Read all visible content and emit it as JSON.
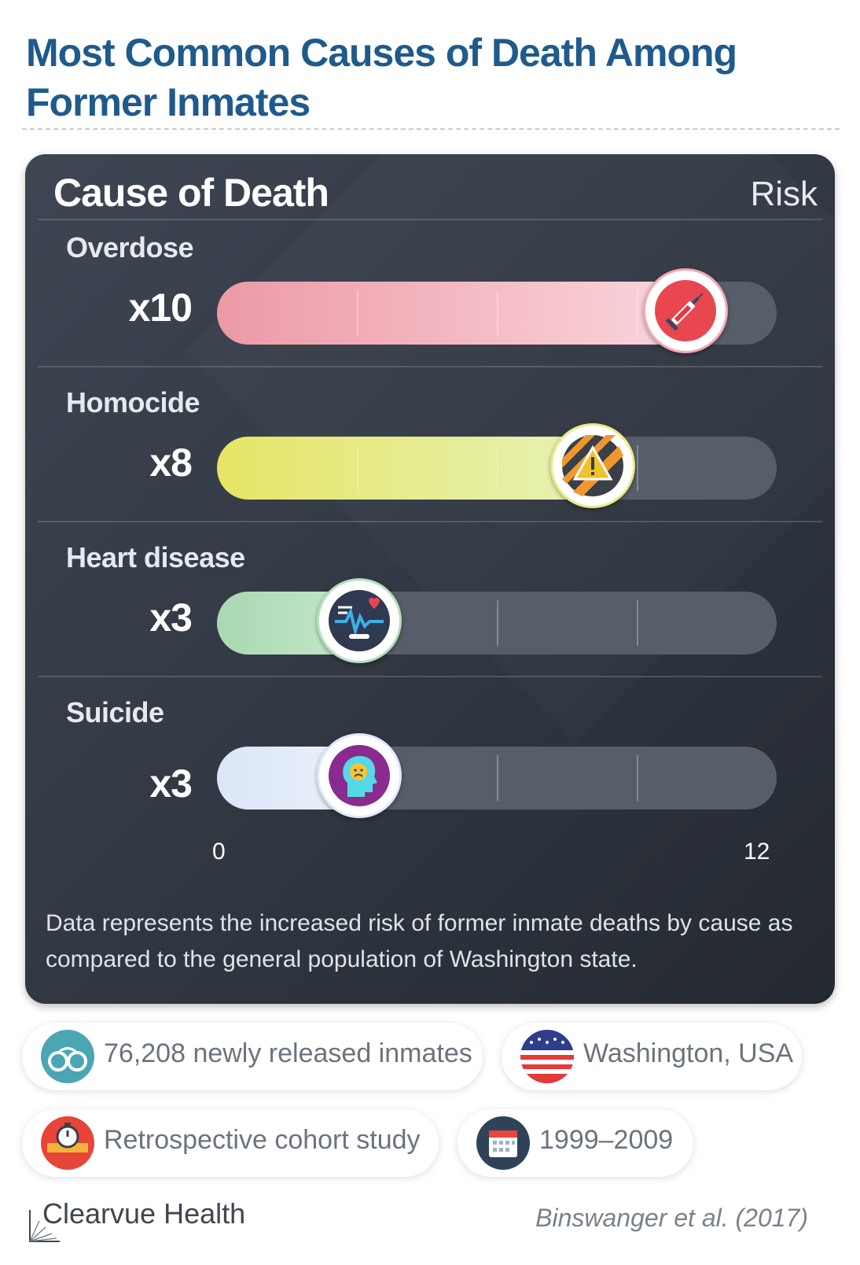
{
  "title": "Most Common Causes of Death Among Former Inmates",
  "card": {
    "header_left": "Cause of Death",
    "header_right": "Risk",
    "axis_min_label": "0",
    "axis_max_label": "12",
    "footnote": "Data represents the increased risk of former inmate deaths by cause as compared to the general population of Washington state."
  },
  "chart_data": {
    "type": "bar",
    "orientation": "horizontal",
    "categories": [
      "Overdose",
      "Homocide",
      "Heart disease",
      "Suicide"
    ],
    "values": [
      10,
      8,
      3,
      3
    ],
    "value_labels": [
      "x10",
      "x8",
      "x3",
      "x3"
    ],
    "xlim": [
      0,
      12
    ],
    "colors": [
      "#f2a8b3",
      "#e8ea86",
      "#b5dfbe",
      "#dfe8f8"
    ],
    "icons": [
      "syringe-icon",
      "warning-icon",
      "heart-monitor-icon",
      "sad-head-icon"
    ],
    "grid": true
  },
  "info": {
    "sample": "76,208 newly released inmates",
    "location": "Washington, USA",
    "design": "Retrospective cohort study",
    "period": "1999–2009"
  },
  "footer": {
    "brand": "Clearvue Health",
    "source": "Binswanger et al. (2017)"
  }
}
